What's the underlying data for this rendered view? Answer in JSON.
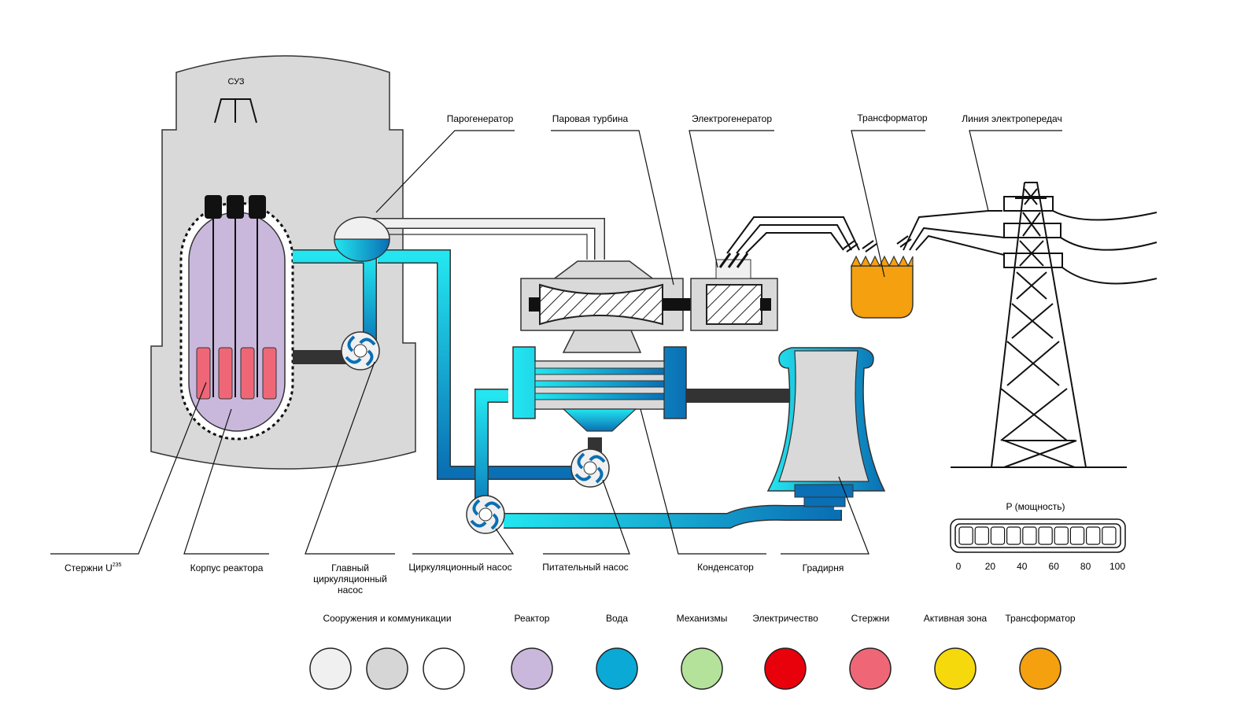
{
  "labels": {
    "suz": "СУЗ",
    "steam_generator": "Парогенератор",
    "steam_turbine": "Паровая турбина",
    "electric_generator": "Электрогенератор",
    "transformer": "Трансформатор",
    "power_line": "Линия электропередач",
    "rods_u235_main": "Стержни U",
    "rods_u235_sup": "235",
    "reactor_vessel": "Корпус реактора",
    "main_circ_pump_l1": "Главный",
    "main_circ_pump_l2": "циркуляционный",
    "main_circ_pump_l3": "насос",
    "circ_pump": "Циркуляционный насос",
    "feed_pump": "Питательный насос",
    "condenser": "Конденсатор",
    "cooling_tower": "Градирня"
  },
  "power": {
    "title": "P (мощность)",
    "ticks": [
      "0",
      "20",
      "40",
      "60",
      "80",
      "100"
    ],
    "segments": 10,
    "level": 0
  },
  "legend": [
    {
      "label": "Сооружения и коммуникации",
      "colors": [
        "#f0f0f0",
        "#d6d6d6",
        "#ffffff"
      ]
    },
    {
      "label": "Реактор",
      "colors": [
        "#c9b8dc"
      ]
    },
    {
      "label": "Вода",
      "colors": [
        "#0aa9d6"
      ]
    },
    {
      "label": "Механизмы",
      "colors": [
        "#b4e29b"
      ]
    },
    {
      "label": "Электричество",
      "colors": [
        "#e8000b"
      ]
    },
    {
      "label": "Стержни",
      "colors": [
        "#ef6777"
      ]
    },
    {
      "label": "Активная зона",
      "colors": [
        "#f5d90d"
      ]
    },
    {
      "label": "Трансформатор",
      "colors": [
        "#f5a00f"
      ]
    }
  ],
  "colors": {
    "structure": "#d9d9d9",
    "reactor": "#c9b8dc",
    "water_light": "#23e6f0",
    "water_dark": "#0a6fb4",
    "rods": "#ef6777",
    "transformer": "#f5a00f"
  }
}
